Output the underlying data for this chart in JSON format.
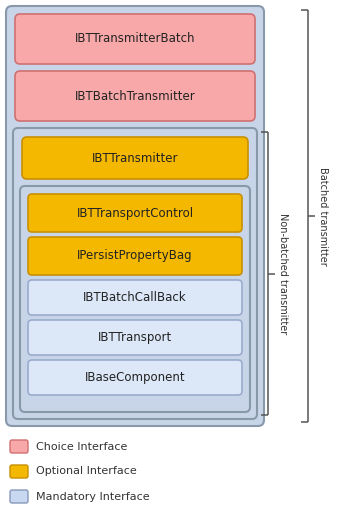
{
  "bg_color": "#ffffff",
  "legend": [
    {
      "label": "Choice Interface",
      "color": "#f8a8a8",
      "border": "#d07070"
    },
    {
      "label": "Optional Interface",
      "color": "#f5b800",
      "border": "#c89000"
    },
    {
      "label": "Mandatory Interface",
      "color": "#c8d8f0",
      "border": "#8899bb"
    }
  ],
  "brace_non_batched": "Non-batched transmitter",
  "brace_batched": "Batched transmitter",
  "outer_face": "#c8d4e8",
  "outer_border": "#8899aa",
  "inner_face": "#c8d4e8",
  "inner_border": "#8899aa",
  "inn2_face": "#c8d4e8",
  "inn2_border": "#8899aa",
  "pink_face": "#f8a8a8",
  "pink_border": "#d07070",
  "orange_face": "#f5b800",
  "orange_border": "#c89000",
  "blue_face": "#dce8f8",
  "blue_border": "#9aabcc"
}
